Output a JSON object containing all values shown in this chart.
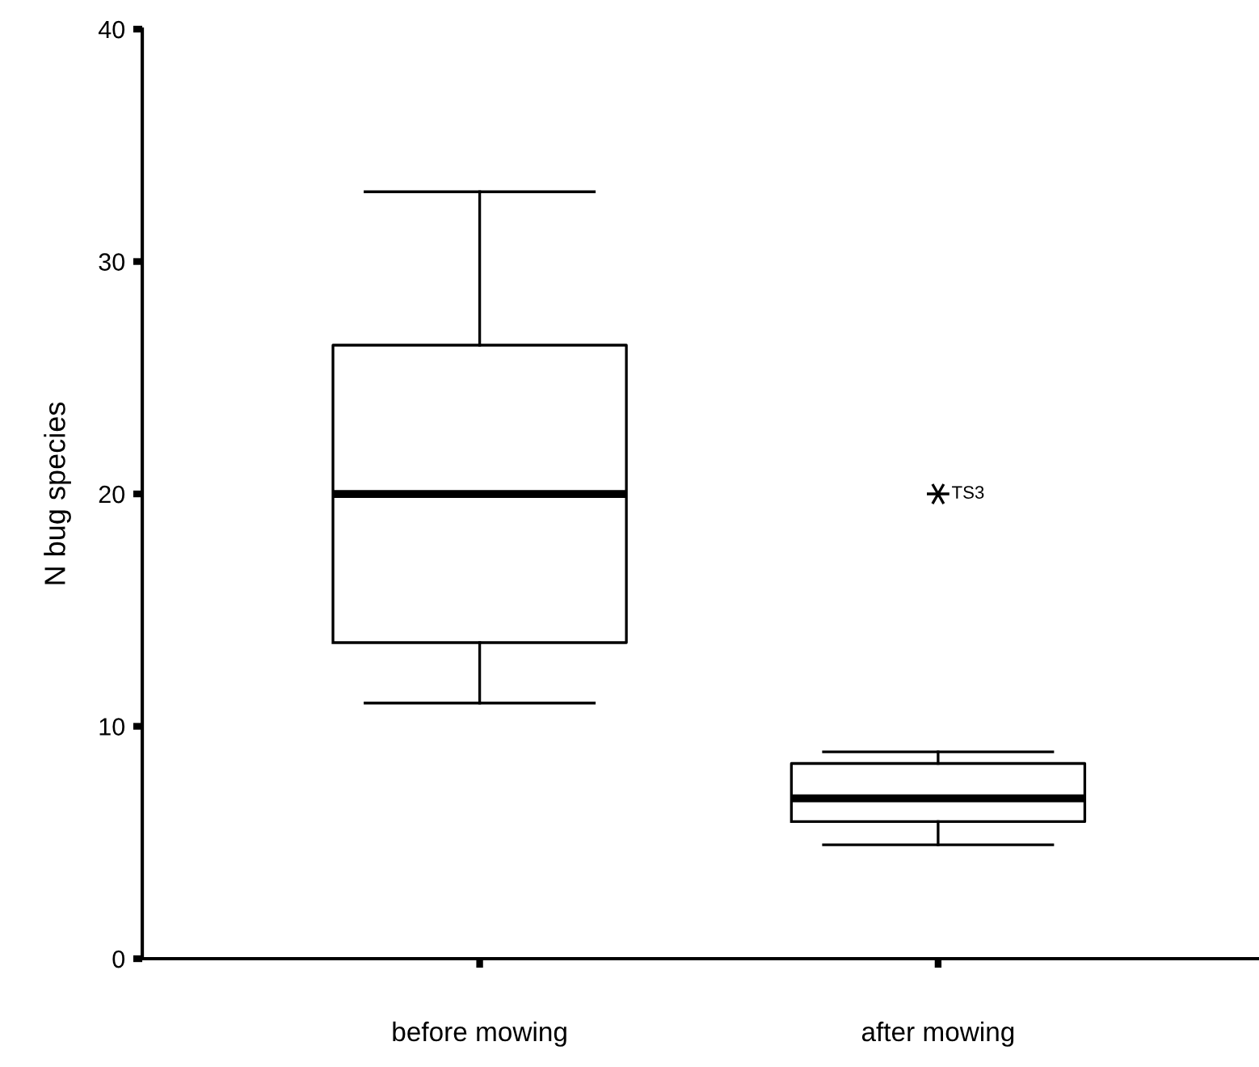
{
  "chart_data": {
    "type": "box",
    "ylabel": "N bug species",
    "categories": [
      "before mowing",
      "after mowing"
    ],
    "boxes": [
      {
        "low": 11.0,
        "q1": 13.6,
        "median": 20.0,
        "q3": 26.4,
        "high": 33.0
      },
      {
        "low": 4.9,
        "q1": 5.9,
        "median": 6.9,
        "q3": 8.4,
        "high": 8.9,
        "outliers": [
          20.0
        ]
      }
    ],
    "ylim": [
      0,
      40
    ],
    "yticks": [
      0,
      10,
      20,
      30,
      40
    ],
    "annotations": [
      "TS3"
    ],
    "grid": false,
    "legend": false
  }
}
